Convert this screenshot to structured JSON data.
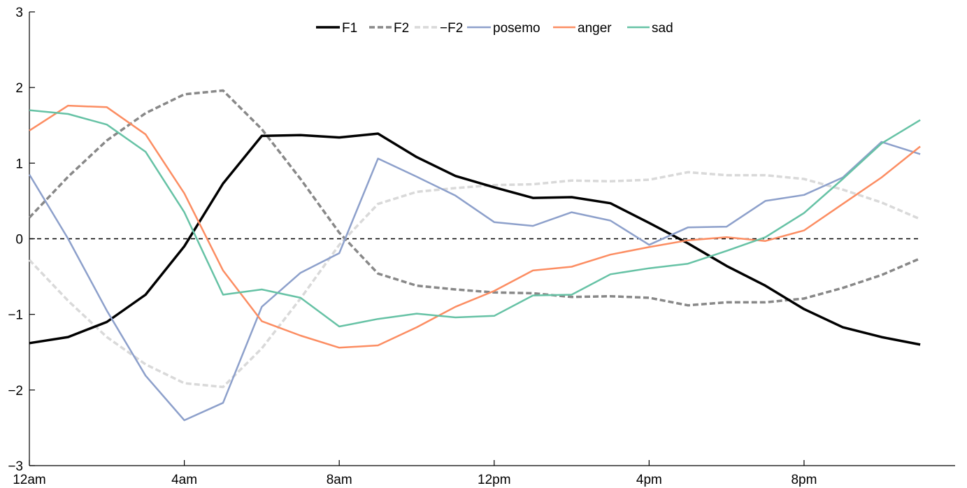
{
  "chart_data": {
    "type": "line",
    "title": "",
    "xlabel": "",
    "ylabel": "",
    "xlim": [
      0,
      23.9
    ],
    "ylim": [
      -3,
      3
    ],
    "x": [
      0,
      1,
      2,
      3,
      4,
      5,
      6,
      7,
      8,
      9,
      10,
      11,
      12,
      13,
      14,
      15,
      16,
      17,
      18,
      19,
      20,
      21,
      22,
      23
    ],
    "x_ticks": [
      {
        "value": 0,
        "label": "12am"
      },
      {
        "value": 4,
        "label": "4am"
      },
      {
        "value": 8,
        "label": "8am"
      },
      {
        "value": 12,
        "label": "12pm"
      },
      {
        "value": 16,
        "label": "4pm"
      },
      {
        "value": 20,
        "label": "8pm"
      }
    ],
    "y_ticks": [
      {
        "value": 3,
        "label": "3"
      },
      {
        "value": 2,
        "label": "2"
      },
      {
        "value": 1,
        "label": "1"
      },
      {
        "value": 0,
        "label": "0"
      },
      {
        "value": -1,
        "label": "−1"
      },
      {
        "value": -2,
        "label": "−2"
      },
      {
        "value": -3,
        "label": "−3"
      }
    ],
    "zero_line": {
      "value": 0,
      "style": "dashed",
      "color": "#000000"
    },
    "legend": {
      "placement": "top-center"
    },
    "grid": false,
    "series": [
      {
        "name": "F1",
        "color": "#000000",
        "style": "solid",
        "width": 3.5,
        "values": [
          -1.38,
          -1.3,
          -1.1,
          -0.74,
          -0.1,
          0.73,
          1.36,
          1.37,
          1.34,
          1.39,
          1.08,
          0.83,
          0.68,
          0.54,
          0.55,
          0.47,
          0.21,
          -0.06,
          -0.36,
          -0.62,
          -0.93,
          -1.17,
          -1.3,
          -1.4
        ]
      },
      {
        "name": "F2",
        "color": "#888888",
        "style": "dashed",
        "width": 3.5,
        "values": [
          0.28,
          0.82,
          1.3,
          1.66,
          1.91,
          1.96,
          1.45,
          0.79,
          0.08,
          -0.46,
          -0.62,
          -0.67,
          -0.71,
          -0.72,
          -0.77,
          -0.76,
          -0.78,
          -0.88,
          -0.84,
          -0.84,
          -0.79,
          -0.65,
          -0.48,
          -0.26
        ]
      },
      {
        "name": "−F2",
        "color": "#d9d9d9",
        "style": "dashed",
        "width": 3.5,
        "values": [
          -0.28,
          -0.82,
          -1.3,
          -1.66,
          -1.91,
          -1.96,
          -1.45,
          -0.79,
          -0.08,
          0.46,
          0.62,
          0.67,
          0.71,
          0.72,
          0.77,
          0.76,
          0.78,
          0.88,
          0.84,
          0.84,
          0.79,
          0.65,
          0.48,
          0.26
        ]
      },
      {
        "name": "posemo",
        "color": "#8da0cb",
        "style": "solid",
        "width": 2.5,
        "values": [
          0.85,
          0.0,
          -0.95,
          -1.81,
          -2.4,
          -2.17,
          -0.9,
          -0.45,
          -0.19,
          1.06,
          0.82,
          0.57,
          0.22,
          0.17,
          0.35,
          0.24,
          -0.08,
          0.15,
          0.16,
          0.5,
          0.58,
          0.81,
          1.28,
          1.12
        ]
      },
      {
        "name": "anger",
        "color": "#fc8d62",
        "style": "solid",
        "width": 2.5,
        "values": [
          1.43,
          1.76,
          1.74,
          1.38,
          0.6,
          -0.42,
          -1.09,
          -1.28,
          -1.44,
          -1.41,
          -1.17,
          -0.9,
          -0.69,
          -0.42,
          -0.37,
          -0.21,
          -0.11,
          -0.02,
          0.02,
          -0.03,
          0.11,
          0.46,
          0.81,
          1.22
        ]
      },
      {
        "name": "sad",
        "color": "#66c2a5",
        "style": "solid",
        "width": 2.5,
        "values": [
          1.7,
          1.65,
          1.51,
          1.15,
          0.35,
          -0.74,
          -0.67,
          -0.78,
          -1.16,
          -1.06,
          -0.99,
          -1.04,
          -1.02,
          -0.75,
          -0.74,
          -0.47,
          -0.39,
          -0.33,
          -0.16,
          0.02,
          0.34,
          0.79,
          1.26,
          1.57
        ]
      }
    ]
  }
}
